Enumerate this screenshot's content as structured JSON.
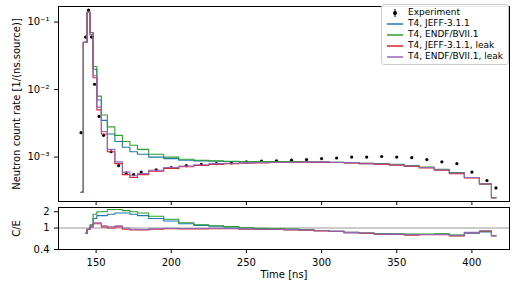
{
  "chart_data": [
    {
      "type": "line",
      "ylabel": "Neutron count rate [1/(ns.source)]",
      "log": "y",
      "legend": "upper right",
      "tick_labels": "y",
      "xlim": [
        125,
        425
      ],
      "xticks": [
        150,
        200,
        250,
        300,
        350,
        400
      ],
      "ylim": [
        0.00022,
        0.17
      ],
      "yticks": [
        {
          "value": 0.001,
          "label": "10⁻³"
        },
        {
          "value": 0.01,
          "label": "10⁻²"
        },
        {
          "value": 0.1,
          "label": "10⁻¹"
        }
      ],
      "x": [
        136,
        140,
        143,
        145,
        147,
        149,
        152,
        155,
        160,
        165,
        170,
        175,
        180,
        190,
        200,
        210,
        220,
        230,
        240,
        250,
        260,
        270,
        280,
        290,
        300,
        310,
        320,
        330,
        340,
        350,
        360,
        370,
        380,
        390,
        400,
        410,
        416
      ],
      "series": [
        {
          "name": "Experiment",
          "type": "scatter",
          "marker": "point",
          "color": "#000000",
          "values": [
            null,
            0.0023,
            0.06,
            0.15,
            0.06,
            0.012,
            0.004,
            0.0021,
            0.0012,
            0.00075,
            0.00058,
            0.00055,
            0.0006,
            0.00065,
            0.0007,
            0.00075,
            0.00078,
            0.0008,
            0.00082,
            0.00085,
            0.00087,
            0.00088,
            0.0009,
            0.00092,
            0.00095,
            0.00097,
            0.001,
            0.001,
            0.00102,
            0.001,
            0.00098,
            0.00092,
            0.00085,
            0.0008,
            0.0006,
            0.00045,
            0.00035
          ]
        },
        {
          "name": "T4, JEFF-3.1.1",
          "line_style": "step",
          "color": "#1f77b4",
          "values": [
            null,
            0.0003,
            0.05,
            0.14,
            0.07,
            0.02,
            0.007,
            0.0035,
            0.0022,
            0.0017,
            0.0014,
            0.0012,
            0.0011,
            0.001,
            0.00095,
            0.0009,
            0.00088,
            0.00087,
            0.00086,
            0.00085,
            0.00085,
            0.00085,
            0.00085,
            0.00085,
            0.00084,
            0.00083,
            0.00082,
            0.0008,
            0.00079,
            0.00077,
            0.00074,
            0.0007,
            0.00065,
            0.00058,
            0.0005,
            0.0004,
            0.00025
          ]
        },
        {
          "name": "T4, ENDF/BVII.1",
          "line_style": "step",
          "color": "#2ca02c",
          "values": [
            null,
            0.0003,
            0.05,
            0.14,
            0.07,
            0.022,
            0.008,
            0.0042,
            0.0028,
            0.0021,
            0.0017,
            0.0015,
            0.0013,
            0.0011,
            0.001,
            0.00093,
            0.0009,
            0.00088,
            0.00087,
            0.00086,
            0.00086,
            0.00086,
            0.00086,
            0.00086,
            0.00085,
            0.00084,
            0.00083,
            0.00081,
            0.0008,
            0.00078,
            0.00075,
            0.00071,
            0.00066,
            0.00059,
            0.0005,
            0.0004,
            0.00025
          ]
        },
        {
          "name": "T4, JEFF-3.1.1, leak",
          "line_style": "step",
          "color": "#d62728",
          "values": [
            null,
            0.0003,
            0.05,
            0.14,
            0.065,
            0.015,
            0.005,
            0.0022,
            0.0012,
            0.0008,
            0.00055,
            0.0005,
            0.00055,
            0.00062,
            0.00068,
            0.00072,
            0.00075,
            0.00078,
            0.0008,
            0.00081,
            0.00082,
            0.00083,
            0.00083,
            0.00084,
            0.00084,
            0.00083,
            0.00082,
            0.0008,
            0.00078,
            0.00076,
            0.00073,
            0.00069,
            0.00064,
            0.00057,
            0.00049,
            0.0004,
            0.00025
          ]
        },
        {
          "name": "T4, ENDF/BVII.1, leak",
          "line_style": "step",
          "color": "#9467bd",
          "values": [
            null,
            0.0003,
            0.05,
            0.14,
            0.065,
            0.016,
            0.0055,
            0.0024,
            0.0013,
            0.00085,
            0.0006,
            0.00053,
            0.00057,
            0.00064,
            0.0007,
            0.00074,
            0.00077,
            0.0008,
            0.00081,
            0.00082,
            0.00083,
            0.00084,
            0.00084,
            0.00085,
            0.00085,
            0.00084,
            0.00083,
            0.00081,
            0.00079,
            0.00077,
            0.00074,
            0.0007,
            0.00065,
            0.00058,
            0.0005,
            0.0004,
            0.00025
          ]
        }
      ]
    },
    {
      "type": "line",
      "xlabel": "Time [ns]",
      "ylabel": "C/E",
      "log": "y",
      "xlim": [
        125,
        425
      ],
      "xticks": [
        150,
        200,
        250,
        300,
        350,
        400
      ],
      "ylim": [
        0.4,
        2.4
      ],
      "yticks": [
        0.4,
        1,
        2
      ],
      "hline": 1,
      "x": [
        136,
        140,
        143,
        145,
        147,
        149,
        152,
        155,
        160,
        165,
        170,
        175,
        180,
        190,
        200,
        210,
        220,
        230,
        240,
        250,
        260,
        270,
        280,
        290,
        300,
        310,
        320,
        330,
        340,
        350,
        360,
        370,
        380,
        390,
        400,
        410,
        416
      ],
      "series": [
        {
          "line_style": "step",
          "color": "#1f77b4",
          "values": [
            null,
            null,
            0.8,
            0.95,
            1.1,
            1.5,
            1.7,
            1.7,
            1.8,
            1.9,
            1.9,
            1.8,
            1.7,
            1.5,
            1.35,
            1.2,
            1.12,
            1.08,
            1.05,
            1.0,
            0.98,
            0.97,
            0.95,
            0.93,
            0.9,
            0.87,
            0.82,
            0.8,
            0.78,
            0.77,
            0.76,
            0.76,
            0.77,
            0.73,
            0.8,
            0.85,
            0.72
          ]
        },
        {
          "line_style": "step",
          "color": "#2ca02c",
          "values": [
            null,
            null,
            0.8,
            0.95,
            1.15,
            1.8,
            2.0,
            2.0,
            2.2,
            2.2,
            2.1,
            2.0,
            1.9,
            1.65,
            1.45,
            1.25,
            1.15,
            1.1,
            1.06,
            1.01,
            0.99,
            0.98,
            0.96,
            0.94,
            0.9,
            0.87,
            0.83,
            0.81,
            0.78,
            0.78,
            0.77,
            0.77,
            0.78,
            0.74,
            0.82,
            0.86,
            0.72
          ]
        },
        {
          "line_style": "step",
          "color": "#d62728",
          "values": [
            null,
            null,
            0.8,
            0.95,
            1.05,
            1.2,
            1.2,
            1.05,
            1.0,
            1.05,
            0.95,
            0.92,
            0.92,
            0.95,
            0.97,
            0.96,
            0.96,
            0.97,
            0.97,
            0.95,
            0.94,
            0.94,
            0.92,
            0.91,
            0.88,
            0.86,
            0.82,
            0.8,
            0.76,
            0.76,
            0.74,
            0.75,
            0.75,
            0.71,
            0.82,
            0.88,
            0.72
          ]
        },
        {
          "line_style": "step",
          "color": "#9467bd",
          "values": [
            null,
            null,
            0.8,
            0.95,
            1.06,
            1.25,
            1.25,
            1.1,
            1.05,
            1.1,
            1.0,
            0.95,
            0.94,
            0.97,
            0.99,
            0.98,
            0.98,
            0.99,
            0.98,
            0.96,
            0.95,
            0.95,
            0.93,
            0.92,
            0.89,
            0.87,
            0.83,
            0.81,
            0.77,
            0.77,
            0.75,
            0.76,
            0.76,
            0.72,
            0.83,
            0.89,
            0.72
          ]
        }
      ]
    }
  ]
}
